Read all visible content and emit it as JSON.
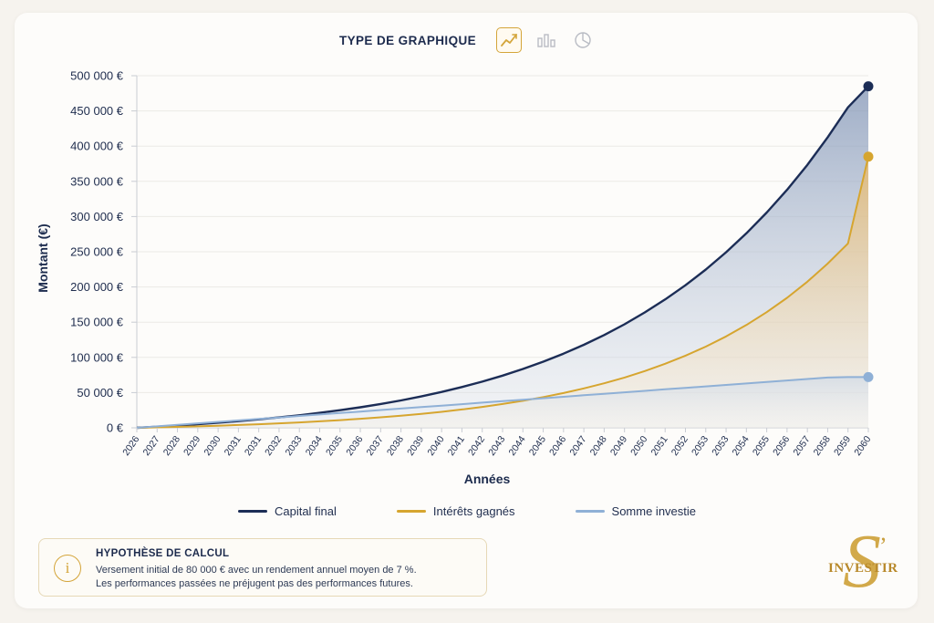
{
  "toolbar": {
    "label": "TYPE DE GRAPHIQUE",
    "types": [
      {
        "icon": "line-chart-icon",
        "active": true
      },
      {
        "icon": "bar-chart-icon",
        "active": false
      },
      {
        "icon": "pie-chart-icon",
        "active": false
      }
    ]
  },
  "colors": {
    "accent": "#d4a53a",
    "capital": "#1c2d56",
    "interets": "#d6a52f",
    "investie": "#8fb0d6"
  },
  "chart_data": {
    "type": "area",
    "ylabel": "Montant (€)",
    "xlabel": "Années",
    "ylim": [
      0,
      500000
    ],
    "yticks": [
      0,
      50000,
      100000,
      150000,
      200000,
      250000,
      300000,
      350000,
      400000,
      450000,
      500000
    ],
    "ytick_labels": [
      "0 €",
      "50 000 €",
      "100 000 €",
      "150 000 €",
      "200 000 €",
      "250 000 €",
      "300 000 €",
      "350 000 €",
      "400 000 €",
      "450 000 €",
      "500 000 €"
    ],
    "x_tick_labels": [
      "2026",
      "2027",
      "2028",
      "2029",
      "2030",
      "2031",
      "2031",
      "2032",
      "2033",
      "2034",
      "2035",
      "2036",
      "2037",
      "2038",
      "2039",
      "2040",
      "2041",
      "2042",
      "2043",
      "2044",
      "2045",
      "2046",
      "2047",
      "2048",
      "2049",
      "2050",
      "2051",
      "2052",
      "2053",
      "2053",
      "2054",
      "2055",
      "2056",
      "2057",
      "2058",
      "2059",
      "2060"
    ],
    "grid": true,
    "series": [
      {
        "name": "Capital final",
        "values": [
          0,
          1500,
          3200,
          5100,
          7200,
          9500,
          12000,
          14800,
          17800,
          21200,
          25000,
          29200,
          33800,
          38900,
          44600,
          50900,
          57900,
          65600,
          74100,
          83500,
          93900,
          105300,
          117900,
          131800,
          147000,
          163800,
          182200,
          202500,
          224800,
          249300,
          276200,
          305700,
          338000,
          373500,
          412400,
          455100,
          485000
        ]
      },
      {
        "name": "Intérêts gagnés",
        "values": [
          0,
          600,
          1300,
          2100,
          3000,
          4000,
          5100,
          6300,
          7700,
          9200,
          10900,
          12800,
          14900,
          17200,
          19800,
          22700,
          26000,
          29700,
          33800,
          38400,
          43600,
          49400,
          55900,
          63200,
          71400,
          80600,
          90900,
          102400,
          115300,
          129800,
          146000,
          164200,
          184600,
          207500,
          233100,
          261800,
          385000
        ]
      },
      {
        "name": "Somme investie",
        "values": [
          0,
          2100,
          4200,
          6300,
          8400,
          10500,
          12600,
          14700,
          16800,
          18900,
          21000,
          23100,
          25200,
          27300,
          29400,
          31500,
          33600,
          35700,
          37800,
          39900,
          42000,
          44100,
          46200,
          48300,
          50400,
          52500,
          54600,
          56700,
          58800,
          60900,
          63000,
          65100,
          67200,
          69300,
          71400,
          72000,
          72000
        ]
      }
    ],
    "legend": [
      "Capital final",
      "Intérêts gagnés",
      "Somme investie"
    ],
    "legend_position": "bottom"
  },
  "hypothesis": {
    "title": "HYPOTHÈSE DE CALCUL",
    "line1": "Versement initial de 80 000 € avec un rendement annuel moyen de 7 %.",
    "line2": "Les performances passées ne préjugent pas des performances futures.",
    "icon": "info-icon"
  },
  "logo": {
    "letter": "S",
    "mark": "’",
    "word": "INVESTIR"
  }
}
